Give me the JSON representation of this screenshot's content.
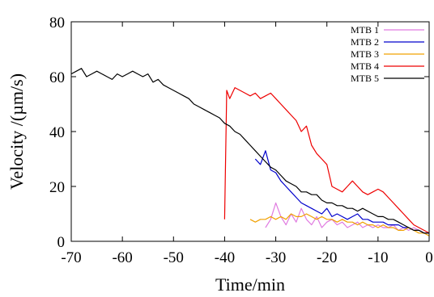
{
  "chart_data": {
    "type": "line",
    "xlabel": "Time/min",
    "ylabel": "Velocity /(µm/s)",
    "xlim": [
      -70,
      0
    ],
    "ylim": [
      0,
      80
    ],
    "xticks": [
      -70,
      -60,
      -50,
      -40,
      -30,
      -20,
      -10,
      0
    ],
    "yticks": [
      0,
      20,
      40,
      60,
      80
    ],
    "grid": false,
    "legend_position": "top-right",
    "series": [
      {
        "name": "MTB 1",
        "color": "#e07be0",
        "x": [
          -32,
          -31,
          -30,
          -29,
          -28,
          -27,
          -26,
          -25,
          -24,
          -23,
          -22,
          -21,
          -20,
          -19,
          -18,
          -17,
          -16,
          -15,
          -14,
          -13,
          -12,
          -11,
          -10,
          -9,
          -8,
          -7,
          -6,
          -5,
          -4,
          -3,
          -2,
          -1,
          0
        ],
        "y": [
          5,
          8,
          14,
          9,
          6,
          10,
          7,
          12,
          8,
          6,
          9,
          5,
          7,
          8,
          6,
          7,
          5,
          6,
          7,
          5,
          6,
          5,
          6,
          5,
          5,
          6,
          4,
          5,
          4,
          5,
          4,
          3,
          3
        ]
      },
      {
        "name": "MTB 2",
        "color": "#0000cc",
        "x": [
          -34,
          -33,
          -32,
          -31,
          -30,
          -29,
          -28,
          -27,
          -26,
          -25,
          -24,
          -23,
          -22,
          -21,
          -20,
          -19,
          -18,
          -17,
          -16,
          -15,
          -14,
          -13,
          -12,
          -11,
          -10,
          -9,
          -8,
          -7,
          -6,
          -5,
          -4,
          -3,
          -2,
          -1,
          0
        ],
        "y": [
          30,
          28,
          33,
          26,
          25,
          22,
          20,
          18,
          16,
          14,
          13,
          12,
          11,
          10,
          12,
          9,
          10,
          9,
          8,
          9,
          10,
          8,
          8,
          7,
          7,
          7,
          6,
          6,
          6,
          5,
          5,
          4,
          4,
          3,
          3
        ]
      },
      {
        "name": "MTB 3",
        "color": "#f0a000",
        "x": [
          -35,
          -34,
          -33,
          -32,
          -31,
          -30,
          -29,
          -28,
          -27,
          -26,
          -25,
          -24,
          -23,
          -22,
          -21,
          -20,
          -19,
          -18,
          -17,
          -16,
          -15,
          -14,
          -13,
          -12,
          -11,
          -10,
          -9,
          -8,
          -7,
          -6,
          -5,
          -4,
          -3,
          -2,
          -1,
          0
        ],
        "y": [
          8,
          7,
          8,
          8,
          9,
          8,
          9,
          8,
          10,
          9,
          9,
          10,
          9,
          8,
          9,
          8,
          8,
          7,
          8,
          7,
          7,
          6,
          7,
          6,
          6,
          5,
          6,
          5,
          5,
          4,
          4,
          5,
          4,
          3,
          3,
          2
        ]
      },
      {
        "name": "MTB 4",
        "color": "#ee0000",
        "x": [
          -40,
          -39.6,
          -39,
          -38,
          -37,
          -36,
          -35,
          -34,
          -33,
          -32,
          -31,
          -30,
          -29,
          -28,
          -27,
          -26,
          -25,
          -24,
          -23,
          -22,
          -21,
          -20,
          -19,
          -18,
          -17,
          -16,
          -15,
          -14,
          -13,
          -12,
          -11,
          -10,
          -9,
          -8,
          -7,
          -6,
          -5,
          -4,
          -3,
          -2,
          -1,
          0
        ],
        "y": [
          8,
          55,
          52,
          56,
          55,
          54,
          53,
          54,
          52,
          53,
          54,
          52,
          50,
          48,
          46,
          44,
          40,
          42,
          35,
          32,
          30,
          28,
          20,
          19,
          18,
          20,
          22,
          20,
          18,
          17,
          18,
          19,
          18,
          16,
          14,
          12,
          10,
          8,
          6,
          5,
          4,
          3
        ]
      },
      {
        "name": "MTB 5",
        "color": "#000000",
        "x": [
          -70,
          -69,
          -68,
          -67,
          -66,
          -65,
          -64,
          -63,
          -62,
          -61,
          -60,
          -59,
          -58,
          -57,
          -56,
          -55,
          -54,
          -53,
          -52,
          -51,
          -50,
          -49,
          -48,
          -47,
          -46,
          -45,
          -44,
          -43,
          -42,
          -41,
          -40,
          -39,
          -38,
          -37,
          -36,
          -35,
          -34,
          -33,
          -32,
          -31,
          -30,
          -29,
          -28,
          -27,
          -26,
          -25,
          -24,
          -23,
          -22,
          -21,
          -20,
          -19,
          -18,
          -17,
          -16,
          -15,
          -14,
          -13,
          -12,
          -11,
          -10,
          -9,
          -8,
          -7,
          -6,
          -5,
          -4,
          -3,
          -2,
          -1,
          0
        ],
        "y": [
          61,
          62,
          63,
          60,
          61,
          62,
          61,
          60,
          59,
          61,
          60,
          61,
          62,
          61,
          60,
          61,
          58,
          59,
          57,
          56,
          55,
          54,
          53,
          52,
          50,
          49,
          48,
          47,
          46,
          45,
          43,
          42,
          40,
          39,
          37,
          35,
          33,
          31,
          29,
          27,
          26,
          24,
          22,
          21,
          20,
          18,
          18,
          17,
          17,
          15,
          14,
          14,
          13,
          13,
          12,
          12,
          11,
          12,
          11,
          10,
          9,
          9,
          8,
          8,
          7,
          6,
          5,
          4,
          4,
          3,
          3
        ]
      }
    ]
  }
}
